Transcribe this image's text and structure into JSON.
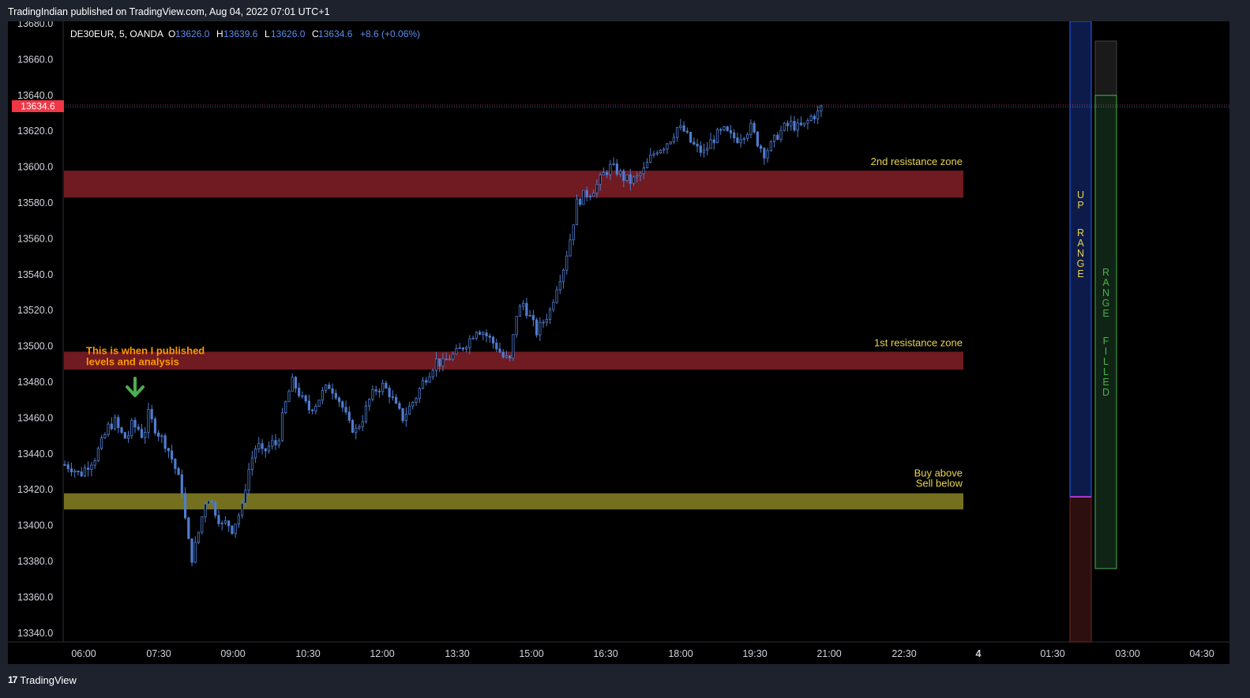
{
  "header": {
    "publish_line": "TradingIndian published on TradingView.com, Aug 04, 2022 07:01 UTC+1"
  },
  "legend": {
    "symbol": "DE30EUR, 5, OANDA",
    "o_label": "O",
    "o_value": "13626.0",
    "h_label": "H",
    "h_value": "13639.6",
    "l_label": "L",
    "l_value": "13626.0",
    "c_label": "C",
    "c_value": "13634.6",
    "change": "+8.6 (+0.06%)"
  },
  "price_tag": "13634.6",
  "footer": {
    "logo_text": "17",
    "brand": "TradingView"
  },
  "colors": {
    "background": "#000000",
    "candle": "#4f7ccf",
    "resistance_zone": "#7a1c24",
    "buy_sell_zone": "#7f7a20",
    "zone_label": "#e8d44d",
    "annotation": "#ff9800",
    "arrow": "#4caf50",
    "price_tag": "#f23645",
    "up_range_fill": "#0d1b4a",
    "up_range_border": "#2962ff",
    "lower_range_fill": "#2d0f0f",
    "range_filled_border": "#4caf50"
  },
  "chart_data": {
    "type": "candlestick",
    "symbol": "DE30EUR",
    "interval": "5",
    "exchange": "OANDA",
    "ylim": [
      13336,
      13682
    ],
    "y_ticks": [
      "13680.0",
      "13660.0",
      "13640.0",
      "13620.0",
      "13600.0",
      "13580.0",
      "13560.0",
      "13540.0",
      "13520.0",
      "13500.0",
      "13480.0",
      "13460.0",
      "13440.0",
      "13420.0",
      "13400.0",
      "13380.0",
      "13360.0",
      "13340.0"
    ],
    "x_ticks": [
      "06:00",
      "07:30",
      "09:00",
      "10:30",
      "12:00",
      "13:30",
      "15:00",
      "16:30",
      "18:00",
      "19:30",
      "21:00",
      "22:30",
      "4",
      "01:30",
      "03:00",
      "04:30"
    ],
    "last_price": 13634.6,
    "zones": [
      {
        "name": "2nd resistance zone",
        "low": 13583,
        "high": 13598
      },
      {
        "name": "1st resistance zone",
        "low": 13487,
        "high": 13497
      },
      {
        "name": "Buy above",
        "name2": "Sell below",
        "low": 13409,
        "high": 13418
      }
    ],
    "annotation": {
      "line1": "This is when I published",
      "line2": "levels and analysis"
    },
    "range_boxes": [
      {
        "label": "UP RANGE",
        "low": 13416,
        "high": 13680
      },
      {
        "label": "RANGE FILLED",
        "low": 13376,
        "high": 13640
      }
    ],
    "path": [
      [
        0,
        13434
      ],
      [
        5,
        13432
      ],
      [
        9,
        13428
      ],
      [
        13,
        13433
      ],
      [
        18,
        13438
      ],
      [
        22,
        13446
      ],
      [
        26,
        13455
      ],
      [
        30,
        13458
      ],
      [
        33,
        13452
      ],
      [
        37,
        13448
      ],
      [
        40,
        13456
      ],
      [
        44,
        13454
      ],
      [
        47,
        13449
      ],
      [
        50,
        13462
      ],
      [
        53,
        13456
      ],
      [
        57,
        13450
      ],
      [
        60,
        13446
      ],
      [
        63,
        13440
      ],
      [
        66,
        13432
      ],
      [
        70,
        13420
      ],
      [
        73,
        13395
      ],
      [
        76,
        13382
      ],
      [
        79,
        13392
      ],
      [
        82,
        13405
      ],
      [
        85,
        13418
      ],
      [
        88,
        13412
      ],
      [
        91,
        13406
      ],
      [
        94,
        13400
      ],
      [
        97,
        13402
      ],
      [
        100,
        13398
      ],
      [
        103,
        13404
      ],
      [
        106,
        13410
      ],
      [
        109,
        13428
      ],
      [
        112,
        13438
      ],
      [
        115,
        13446
      ],
      [
        118,
        13440
      ],
      [
        121,
        13443
      ],
      [
        124,
        13446
      ],
      [
        127,
        13445
      ],
      [
        130,
        13460
      ],
      [
        133,
        13472
      ],
      [
        136,
        13480
      ],
      [
        139,
        13476
      ],
      [
        142,
        13470
      ],
      [
        146,
        13465
      ],
      [
        150,
        13468
      ],
      [
        154,
        13474
      ],
      [
        158,
        13478
      ],
      [
        162,
        13474
      ],
      [
        166,
        13466
      ],
      [
        170,
        13456
      ],
      [
        174,
        13453
      ],
      [
        178,
        13460
      ],
      [
        182,
        13470
      ],
      [
        186,
        13476
      ],
      [
        190,
        13478
      ],
      [
        194,
        13474
      ],
      [
        198,
        13466
      ],
      [
        202,
        13460
      ],
      [
        206,
        13466
      ],
      [
        210,
        13472
      ],
      [
        214,
        13480
      ],
      [
        218,
        13486
      ],
      [
        222,
        13492
      ],
      [
        226,
        13490
      ],
      [
        230,
        13494
      ],
      [
        234,
        13496
      ],
      [
        238,
        13500
      ],
      [
        242,
        13504
      ],
      [
        246,
        13510
      ],
      [
        250,
        13508
      ],
      [
        254,
        13504
      ],
      [
        258,
        13500
      ],
      [
        262,
        13494
      ],
      [
        266,
        13492
      ],
      [
        270,
        13518
      ],
      [
        274,
        13524
      ],
      [
        278,
        13516
      ],
      [
        282,
        13508
      ],
      [
        286,
        13514
      ],
      [
        290,
        13520
      ],
      [
        294,
        13534
      ],
      [
        298,
        13544
      ],
      [
        302,
        13560
      ],
      [
        306,
        13580
      ],
      [
        310,
        13584
      ],
      [
        314,
        13586
      ],
      [
        318,
        13590
      ],
      [
        322,
        13596
      ],
      [
        326,
        13600
      ],
      [
        330,
        13598
      ],
      [
        334,
        13594
      ],
      [
        338,
        13592
      ],
      [
        342,
        13594
      ],
      [
        346,
        13598
      ],
      [
        350,
        13605
      ],
      [
        354,
        13610
      ],
      [
        358,
        13612
      ],
      [
        362,
        13616
      ],
      [
        366,
        13622
      ],
      [
        370,
        13620
      ],
      [
        374,
        13614
      ],
      [
        378,
        13610
      ],
      [
        382,
        13608
      ],
      [
        386,
        13614
      ],
      [
        390,
        13618
      ],
      [
        394,
        13620
      ],
      [
        398,
        13617
      ],
      [
        402,
        13616
      ],
      [
        406,
        13619
      ],
      [
        410,
        13622
      ],
      [
        414,
        13614
      ],
      [
        418,
        13608
      ],
      [
        422,
        13612
      ],
      [
        426,
        13618
      ],
      [
        430,
        13622
      ],
      [
        434,
        13624
      ],
      [
        438,
        13622
      ],
      [
        442,
        13623
      ],
      [
        446,
        13628
      ],
      [
        450,
        13630
      ],
      [
        453,
        13634.6
      ]
    ],
    "x_index_range": [
      0,
      453
    ]
  }
}
